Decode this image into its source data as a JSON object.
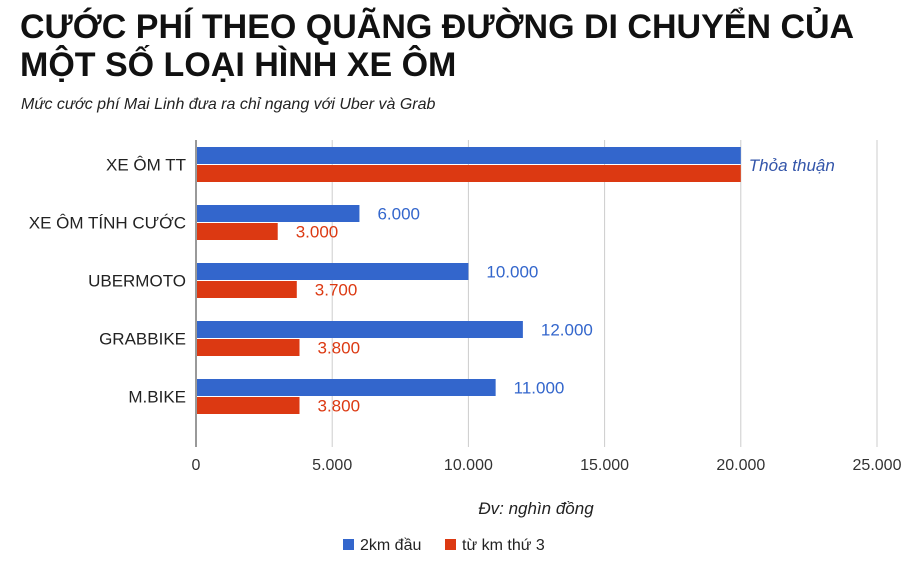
{
  "chart_data": {
    "type": "bar",
    "orientation": "horizontal",
    "title": "CƯỚC PHÍ THEO QUÃNG ĐƯỜNG DI CHUYỂN CỦA MỘT SỐ LOẠI HÌNH XE ÔM",
    "subtitle": "Mức cước phí Mai Linh đưa ra chỉ ngang với Uber và Grab",
    "categories": [
      "XE ÔM TT",
      "XE ÔM TÍNH CƯỚC",
      "UBERMOTO",
      "GRABBIKE",
      "M.BIKE"
    ],
    "series": [
      {
        "name": "2km đầu",
        "color": "#3366cc",
        "values": [
          20000,
          6000,
          10000,
          12000,
          11000
        ],
        "labels": [
          "",
          "6.000",
          "10.000",
          "12.000",
          "11.000"
        ]
      },
      {
        "name": "từ km thứ 3",
        "color": "#dc3912",
        "values": [
          20000,
          3000,
          3700,
          3800,
          3800
        ],
        "labels": [
          "",
          "3.000",
          "3.700",
          "3.800",
          "3.800"
        ]
      }
    ],
    "annotation": {
      "text": "Thỏa thuận",
      "category": "XE ÔM TT",
      "color": "#3355aa"
    },
    "xlim": [
      0,
      25000
    ],
    "xticks": [
      0,
      5000,
      10000,
      15000,
      20000,
      25000
    ],
    "xtick_labels": [
      "0",
      "5.000",
      "10.000",
      "15.000",
      "20.000",
      "25.000"
    ],
    "xlabel": "Đv: nghìn đồng",
    "ylabel": "",
    "grid": true,
    "legend_position": "bottom"
  }
}
